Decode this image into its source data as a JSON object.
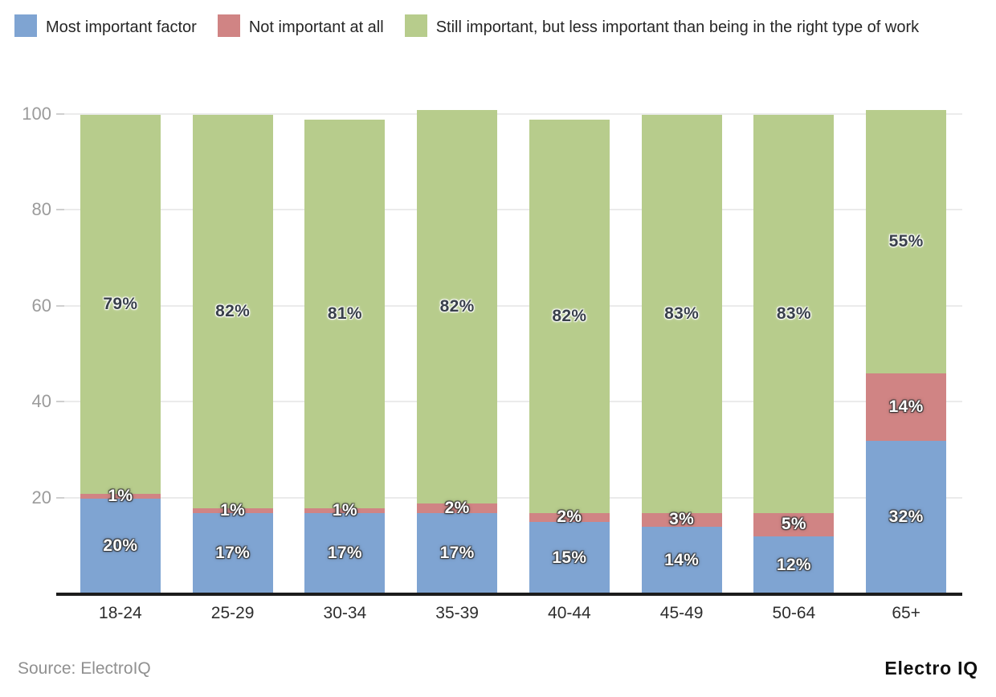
{
  "legend": {
    "items": [
      {
        "label": "Most important factor",
        "color": "#7fa4d2"
      },
      {
        "label": "Not important at all",
        "color": "#d08484"
      },
      {
        "label": "Still important, but less important than being in the right type of work",
        "color": "#b7cc8c"
      }
    ]
  },
  "chart_data": {
    "type": "bar",
    "stacked": true,
    "categories": [
      "18-24",
      "25-29",
      "30-34",
      "35-39",
      "40-44",
      "45-49",
      "50-64",
      "65+"
    ],
    "series": [
      {
        "name": "Most important factor",
        "color": "#7fa4d2",
        "label_style": "light",
        "values": [
          20,
          17,
          17,
          17,
          15,
          14,
          12,
          32
        ]
      },
      {
        "name": "Not important at all",
        "color": "#d08484",
        "label_style": "light",
        "values": [
          1,
          1,
          1,
          2,
          2,
          3,
          5,
          14
        ]
      },
      {
        "name": "Still important, but less important than being in the right type of work",
        "color": "#b7cc8c",
        "label_style": "dark",
        "values": [
          79,
          82,
          81,
          82,
          82,
          83,
          83,
          55
        ]
      }
    ],
    "value_suffix": "%",
    "yticks": [
      20,
      40,
      60,
      80,
      100
    ],
    "ylim": [
      0,
      100
    ],
    "grid": true,
    "legend_position": "top",
    "title": "",
    "xlabel": "",
    "ylabel": ""
  },
  "footer": {
    "source": "Source: ElectroIQ",
    "brand": "Electro IQ"
  }
}
